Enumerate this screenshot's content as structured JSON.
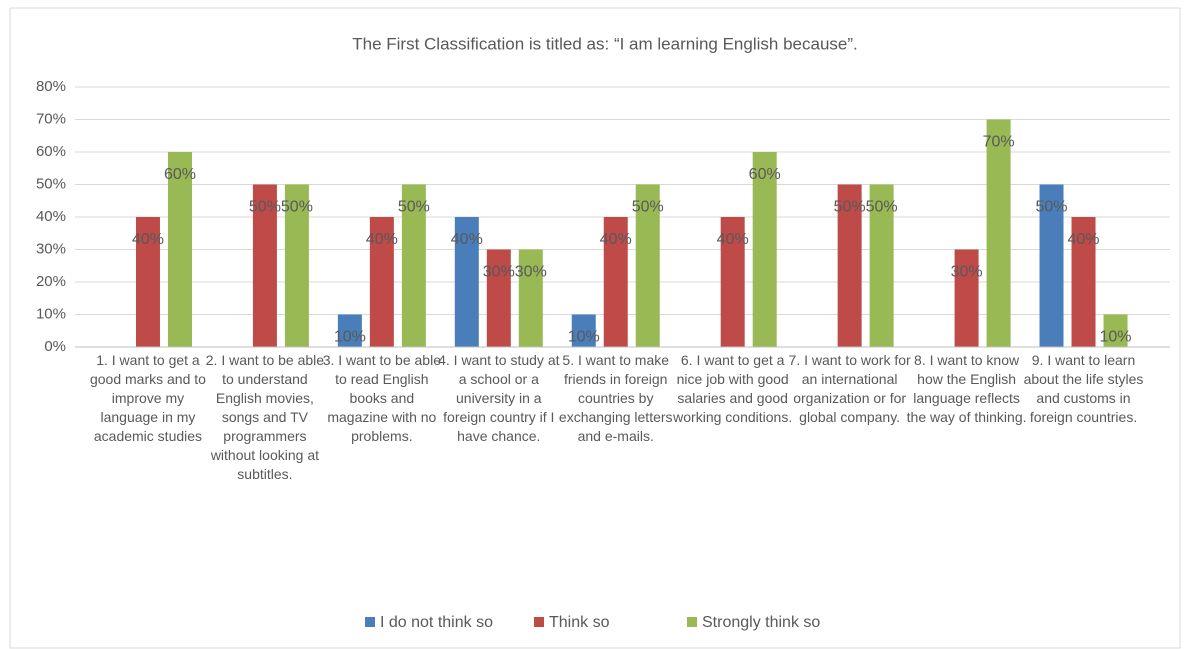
{
  "chart_data": {
    "type": "bar",
    "title": "The First Classification is titled as: “I am learning English because”.",
    "categories": [
      "1. I want to get a good marks and to improve my language in my academic studies",
      "2. I want to be able to understand English movies, songs and TV programmers without looking at subtitles.",
      "3. I want to be able to read English books and magazine with no problems.",
      "4. I want to study at a school or a university in a foreign country if I have chance.",
      "5. I want to make friends in foreign countries by exchanging letters and e-mails.",
      "6. I want to get a nice job with good salaries and good working conditions.",
      "7. I want to work for an international organization or for global company.",
      "8. I want to know how the English language reflects the way of thinking.",
      "9. I want to learn about the life styles and customs in foreign countries."
    ],
    "series": [
      {
        "name": "I do not think so",
        "color": "#4a7ebb",
        "values": [
          null,
          null,
          10,
          40,
          10,
          null,
          null,
          null,
          50
        ],
        "value_labels": [
          null,
          null,
          "10%",
          "40%",
          "10%",
          null,
          null,
          null,
          "50%"
        ]
      },
      {
        "name": "Think so",
        "color": "#be4b48",
        "values": [
          40,
          50,
          40,
          30,
          40,
          40,
          50,
          30,
          40
        ],
        "value_labels": [
          "40%",
          "50%",
          "40%",
          "30%",
          "40%",
          "40%",
          "50%",
          "30%",
          "40%"
        ]
      },
      {
        "name": "Strongly think so",
        "color": "#98b954",
        "values": [
          60,
          50,
          50,
          30,
          50,
          60,
          50,
          70,
          10
        ],
        "value_labels": [
          "60%",
          "50%",
          "50%",
          "30%",
          "50%",
          "60%",
          "50%",
          "70%",
          "10%"
        ]
      }
    ],
    "ylim": [
      0,
      80
    ],
    "yticks": [
      {
        "value": 0,
        "label": "0%"
      },
      {
        "value": 10,
        "label": "10%"
      },
      {
        "value": 20,
        "label": "20%"
      },
      {
        "value": 30,
        "label": "30%"
      },
      {
        "value": 40,
        "label": "40%"
      },
      {
        "value": 50,
        "label": "50%"
      },
      {
        "value": 60,
        "label": "60%"
      },
      {
        "value": 70,
        "label": "70%"
      },
      {
        "value": 80,
        "label": "80%"
      }
    ],
    "grid": true,
    "legend": "bottom"
  }
}
